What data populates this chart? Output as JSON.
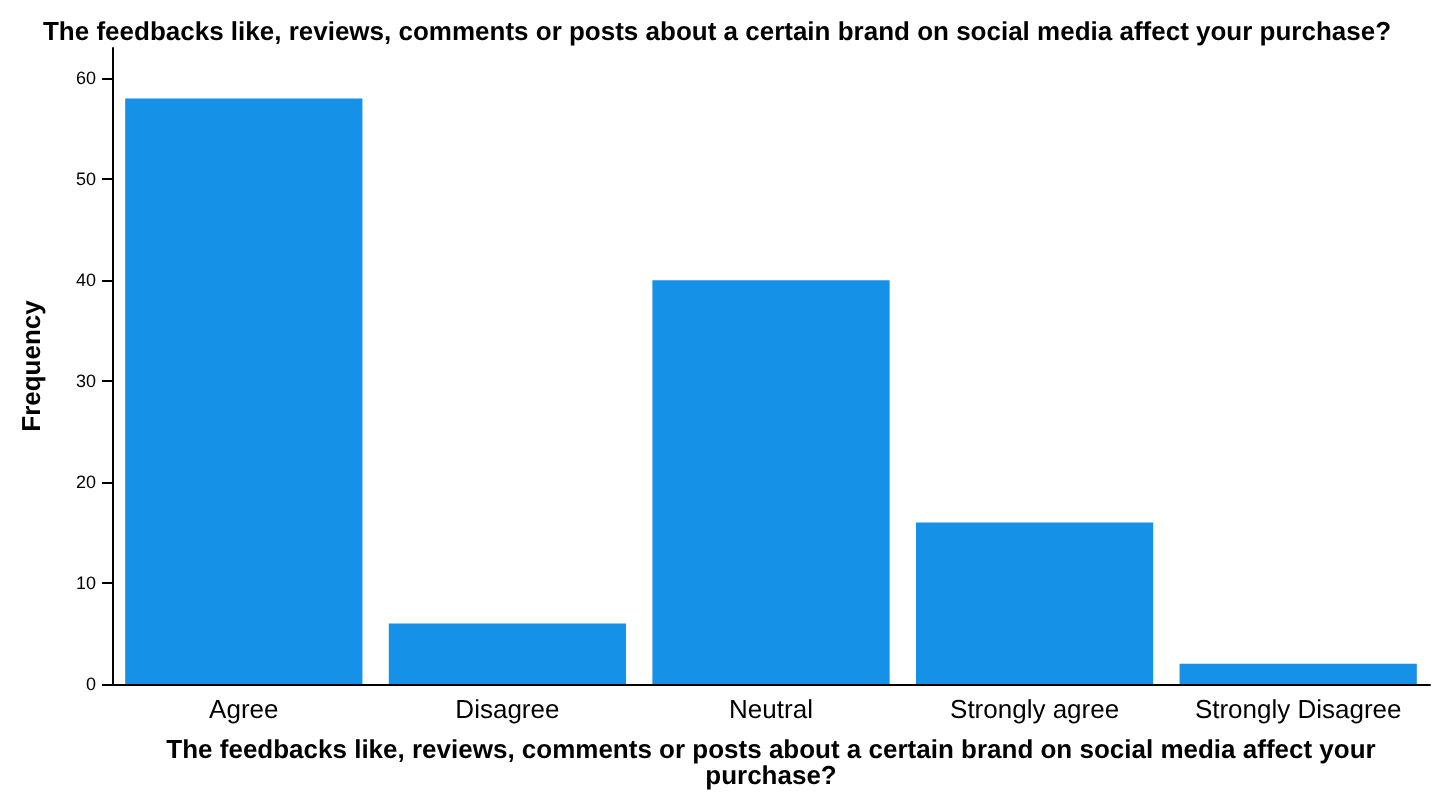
{
  "chart_data": {
    "type": "bar",
    "title": "The feedbacks like, reviews, comments or posts about a certain brand on social media affect your purchase?",
    "xlabel": "The feedbacks like, reviews, comments or posts about a certain brand on social media affect your\npurchase?",
    "ylabel": "Frequency",
    "categories": [
      "Agree",
      "Disagree",
      "Neutral",
      "Strongly agree",
      "Strongly Disagree"
    ],
    "values": [
      58,
      6,
      40,
      16,
      2
    ],
    "color": "#1591e8",
    "ylim": [
      0,
      63
    ],
    "yticks": [
      0,
      10,
      20,
      30,
      40,
      50,
      60
    ],
    "grid": false
  }
}
